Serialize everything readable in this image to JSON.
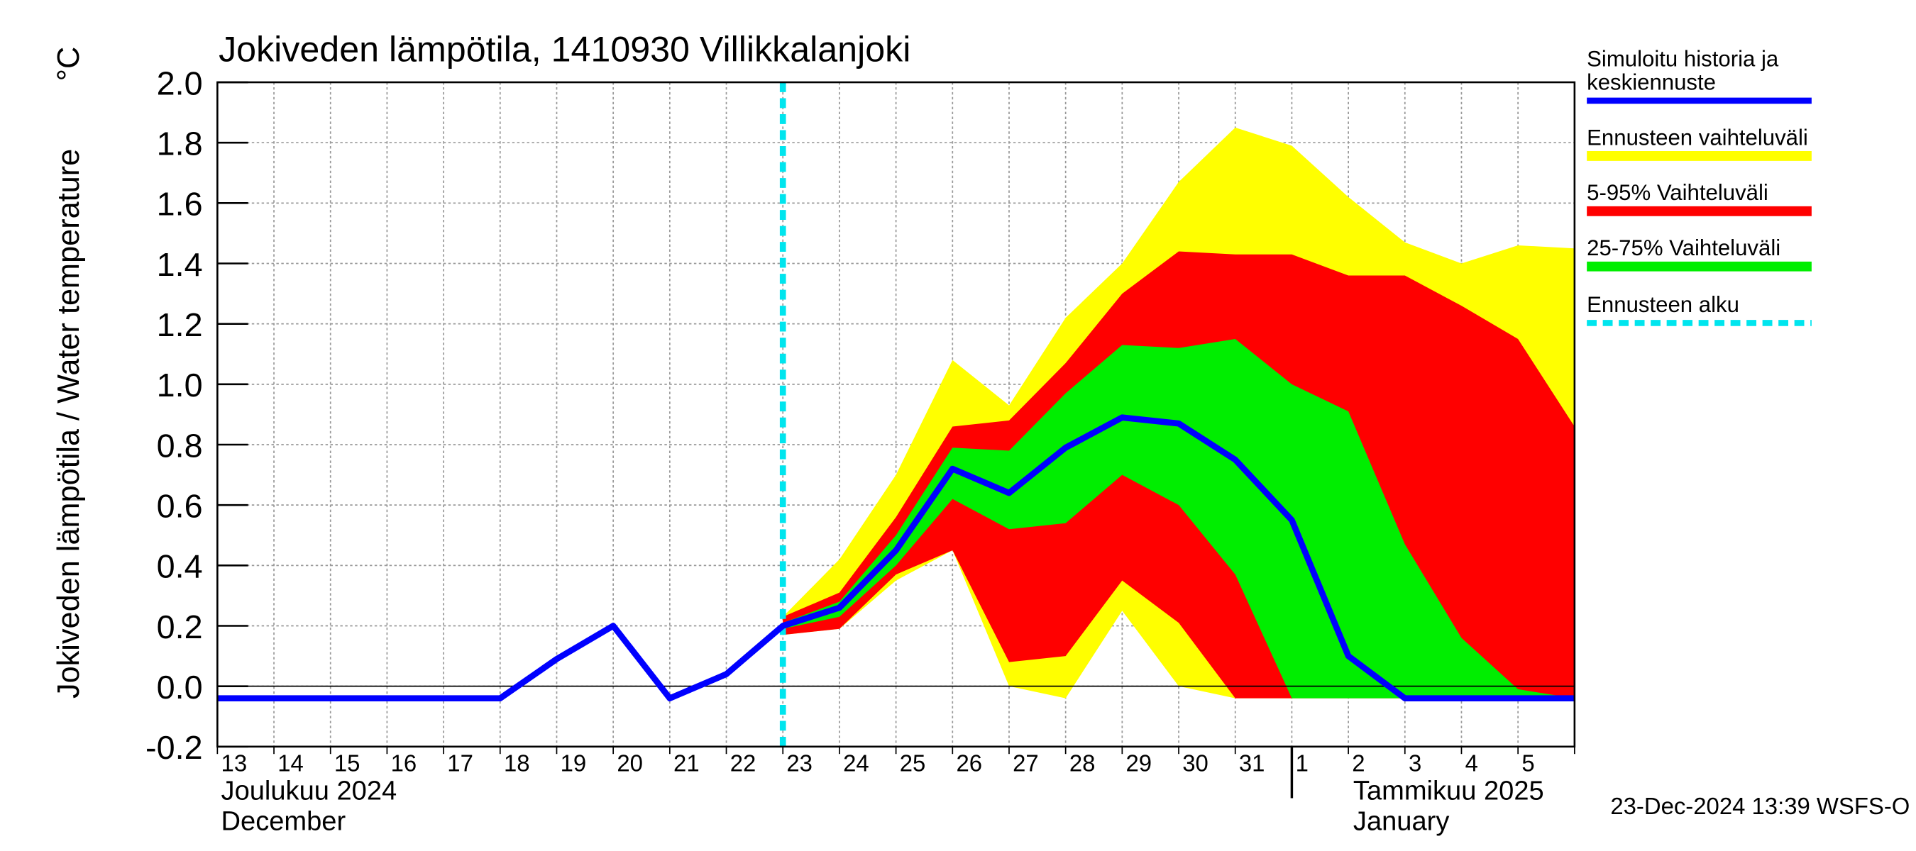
{
  "chart_data": {
    "type": "line",
    "title": "Jokiveden lämpötila, 1410930 Villikkalanjoki",
    "y_label": "Jokiveden lämpötila / Water temperature",
    "y_unit": "°C",
    "categories": [
      "13",
      "14",
      "15",
      "16",
      "17",
      "18",
      "19",
      "20",
      "21",
      "22",
      "23",
      "24",
      "25",
      "26",
      "27",
      "28",
      "29",
      "30",
      "31",
      "1",
      "2",
      "3",
      "4",
      "5",
      null
    ],
    "months": [
      {
        "label": "Joulukuu  2024",
        "label_en": "December",
        "start": "13"
      },
      {
        "label": "Tammikuu  2025",
        "label_en": "January",
        "start": "1"
      }
    ],
    "forecast_start": "23",
    "forecast_start_name": "Ennusteen alku",
    "forecast_start_color": "#00e5ee",
    "ylim": [
      -0.2,
      2.0
    ],
    "yticks": [
      -0.2,
      {
        "value": 0,
        "label": "0.0"
      },
      0.2,
      0.4,
      0.6,
      0.8,
      {
        "value": 1,
        "label": "1.0"
      },
      1.2,
      1.4,
      1.6,
      1.8,
      {
        "value": 2,
        "label": "2.0"
      }
    ],
    "grid": true,
    "bands": [
      {
        "name": "Ennusteen vaihteluväli",
        "color": "#ffff00",
        "upper": [
          null,
          null,
          null,
          null,
          null,
          null,
          null,
          null,
          null,
          null,
          0.23,
          0.42,
          0.7,
          1.08,
          0.93,
          1.22,
          1.4,
          1.67,
          1.85,
          1.79,
          1.62,
          1.47,
          1.4,
          1.46,
          1.45
        ],
        "lower": [
          null,
          null,
          null,
          null,
          null,
          null,
          null,
          null,
          null,
          null,
          0.17,
          0.19,
          0.35,
          0.45,
          0.0,
          -0.04,
          0.25,
          0.0,
          -0.04,
          -0.04,
          -0.04,
          -0.04,
          -0.04,
          -0.04,
          -0.04
        ]
      },
      {
        "name": "5-95% Vaihteluväli",
        "color": "#ff0000",
        "upper": [
          null,
          null,
          null,
          null,
          null,
          null,
          null,
          null,
          null,
          null,
          0.23,
          0.31,
          0.56,
          0.86,
          0.88,
          1.07,
          1.3,
          1.44,
          1.43,
          1.43,
          1.36,
          1.36,
          1.26,
          1.15,
          0.86
        ],
        "lower": [
          null,
          null,
          null,
          null,
          null,
          null,
          null,
          null,
          null,
          null,
          0.17,
          0.19,
          0.37,
          0.45,
          0.08,
          0.1,
          0.35,
          0.21,
          -0.04,
          -0.04,
          -0.04,
          -0.04,
          -0.04,
          -0.04,
          -0.04
        ]
      },
      {
        "name": "25-75% Vaihteluväli",
        "color": "#00ee00",
        "upper": [
          null,
          null,
          null,
          null,
          null,
          null,
          null,
          null,
          null,
          null,
          0.21,
          0.28,
          0.5,
          0.79,
          0.78,
          0.97,
          1.13,
          1.12,
          1.15,
          1.0,
          0.91,
          0.47,
          0.16,
          -0.01,
          -0.04
        ],
        "lower": [
          null,
          null,
          null,
          null,
          null,
          null,
          null,
          null,
          null,
          null,
          0.19,
          0.23,
          0.4,
          0.62,
          0.52,
          0.54,
          0.7,
          0.6,
          0.37,
          -0.04,
          -0.04,
          -0.04,
          -0.04,
          -0.04,
          -0.04
        ]
      }
    ],
    "series": [
      {
        "name": "Simuloitu historia ja keskiennuste",
        "color": "#0000ff",
        "values": [
          -0.04,
          -0.04,
          -0.04,
          -0.04,
          -0.04,
          -0.04,
          0.09,
          0.2,
          -0.04,
          0.04,
          0.2,
          0.26,
          0.45,
          0.72,
          0.64,
          0.79,
          0.89,
          0.87,
          0.75,
          0.55,
          0.1,
          -0.04,
          -0.04,
          -0.04,
          -0.04
        ]
      }
    ],
    "footer": "23-Dec-2024 13:39 WSFS-O"
  }
}
